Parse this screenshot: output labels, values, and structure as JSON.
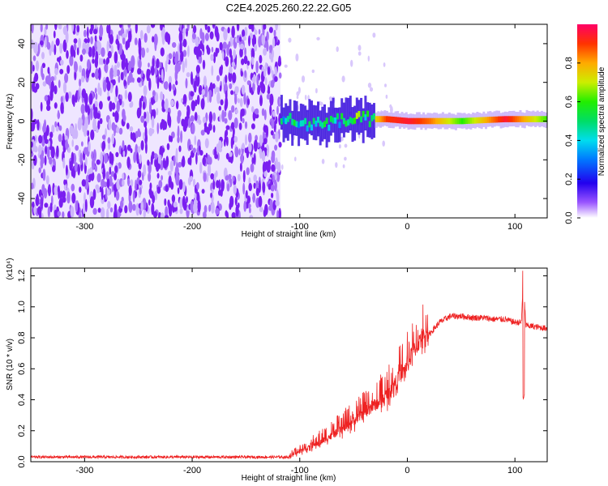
{
  "title": "C2E4.2025.260.22.22.G05",
  "chart_data": [
    {
      "type": "heatmap",
      "name": "spectrogram",
      "xlabel": "Height of straight line (km)",
      "ylabel": "Frequency (Hz)",
      "xlim": [
        -350,
        130
      ],
      "ylim": [
        -50,
        50
      ],
      "xticks": [
        -300,
        -200,
        -100,
        0,
        100
      ],
      "yticks": [
        -40,
        -20,
        0,
        20,
        40
      ],
      "noise_region": [
        -350,
        -118
      ],
      "signal_track": [
        {
          "x": -118,
          "f": 2,
          "amp": 0.45
        },
        {
          "x": -100,
          "f": -2,
          "amp": 0.5
        },
        {
          "x": -80,
          "f": -1,
          "amp": 0.5
        },
        {
          "x": -60,
          "f": 0,
          "amp": 0.55
        },
        {
          "x": -40,
          "f": 1,
          "amp": 0.6
        },
        {
          "x": -20,
          "f": 1,
          "amp": 0.9
        },
        {
          "x": 0,
          "f": 0,
          "amp": 0.95
        },
        {
          "x": 20,
          "f": 0,
          "amp": 0.85
        },
        {
          "x": 50,
          "f": 0,
          "amp": 0.6
        },
        {
          "x": 90,
          "f": 1,
          "amp": 0.95
        },
        {
          "x": 130,
          "f": 1,
          "amp": 0.6
        }
      ],
      "colorbar": {
        "label": "Normalized spectral amplitude",
        "ticks": [
          "0.0",
          "0.2",
          "0.4",
          "0.6",
          "0.8"
        ],
        "tick_values": [
          0.0,
          0.2,
          0.4,
          0.6,
          0.8
        ],
        "range": [
          0,
          1
        ]
      }
    },
    {
      "type": "line",
      "name": "snr",
      "xlabel": "Height of straight line (km)",
      "ylabel": "SNR (10 * v/v)",
      "scale_label": "(x10⁴)",
      "xlim": [
        -350,
        130
      ],
      "ylim": [
        0,
        1.25
      ],
      "xticks": [
        -300,
        -200,
        -100,
        0,
        100
      ],
      "yticks": [
        "0.0",
        "0.2",
        "0.4",
        "0.6",
        "0.8",
        "1.0",
        "1.2"
      ],
      "ytick_values": [
        0.0,
        0.2,
        0.4,
        0.6,
        0.8,
        1.0,
        1.2
      ],
      "color": "#ee2222",
      "x": [
        -350,
        -200,
        -110,
        -100,
        -80,
        -60,
        -40,
        -20,
        -10,
        0,
        5,
        10,
        20,
        30,
        40,
        50,
        60,
        70,
        80,
        90,
        100,
        106,
        108,
        110,
        120,
        130
      ],
      "y": [
        0.03,
        0.03,
        0.03,
        0.06,
        0.12,
        0.2,
        0.3,
        0.4,
        0.5,
        0.6,
        0.68,
        0.74,
        0.82,
        0.9,
        0.94,
        0.94,
        0.93,
        0.93,
        0.92,
        0.92,
        0.9,
        0.9,
        1.2,
        0.88,
        0.87,
        0.86
      ]
    }
  ]
}
